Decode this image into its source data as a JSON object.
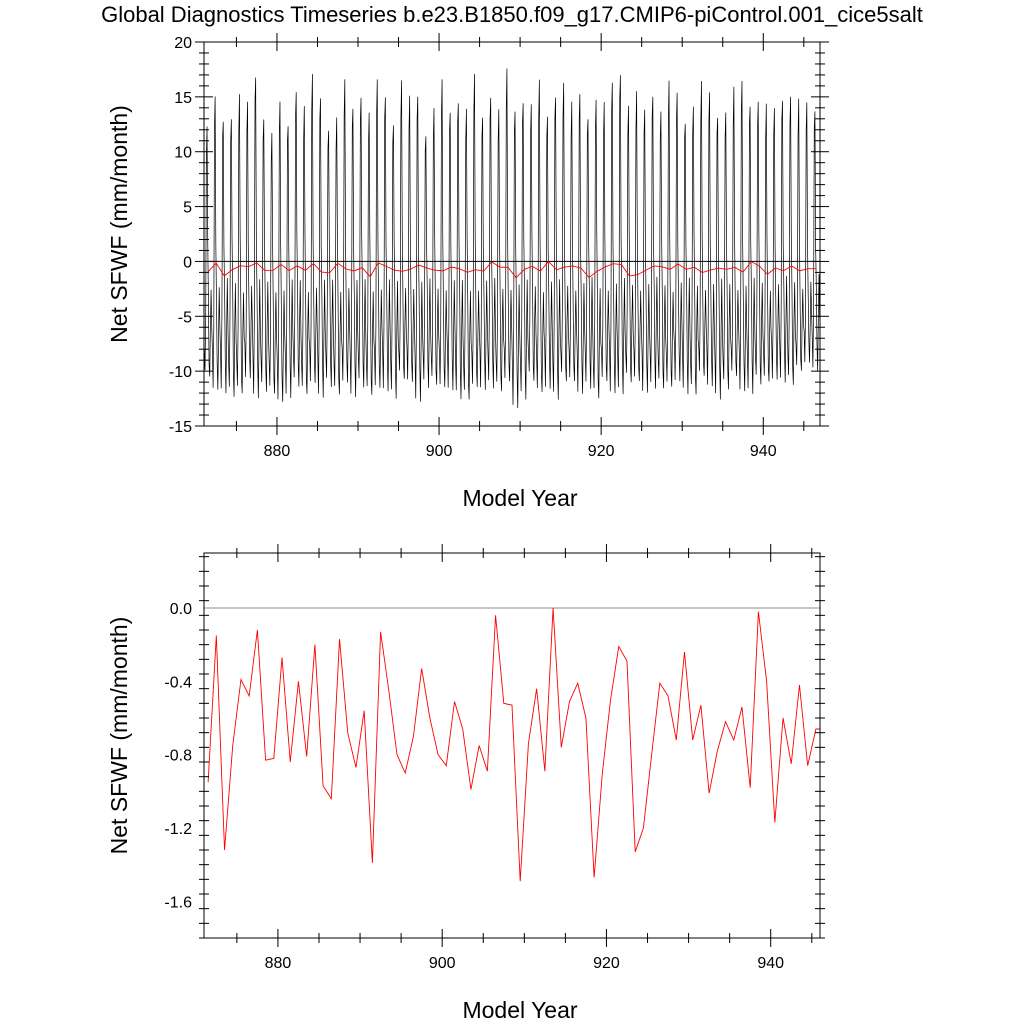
{
  "title": "Global Diagnostics Timeseries b.e23.B1850.f09_g17.CMIP6-piControl.001_cice5salt",
  "colors": {
    "monthly_line": "#000000",
    "annual_line": "#ff0000",
    "zero_line": "#000000",
    "background": "#ffffff"
  },
  "chart_data": [
    {
      "type": "line",
      "panel": "top",
      "xlabel": "Model Year",
      "ylabel": "Net SFWF (mm/month)",
      "xlim": [
        871,
        947
      ],
      "ylim": [
        -15,
        20
      ],
      "x_ticks": [
        880,
        900,
        920,
        940
      ],
      "y_ticks": [
        -15,
        -10,
        -5,
        0,
        5,
        10,
        15,
        20
      ],
      "y_tick_labels": [
        "-15",
        "-10",
        "-5",
        "0",
        "5",
        "10",
        "15",
        "20"
      ],
      "reference_line": 0,
      "grid": false,
      "series": [
        {
          "color": "#000000",
          "resolution": "monthly",
          "start_year": 871,
          "monthly_template": [
            -8,
            -10.5,
            -5,
            12,
            14.5,
            2,
            -3,
            -9,
            -11,
            -6,
            -2,
            -6
          ],
          "annual_peaks": [
            12.0,
            14.5,
            13.0,
            13.5,
            15.0,
            14.0,
            17.0,
            13.5,
            11.5,
            14.0,
            12.5,
            16.0,
            14.0,
            16.5,
            15.0,
            12.5,
            13.0,
            16.0,
            14.0,
            15.5,
            13.5,
            16.0,
            15.0,
            13.0,
            16.5,
            14.5,
            15.0,
            12.0,
            14.0,
            16.0,
            13.5,
            15.0,
            14.0,
            16.5,
            13.0,
            15.5,
            14.0,
            17.0,
            13.5,
            15.0,
            14.5,
            16.0,
            13.0,
            15.5,
            16.5,
            14.0,
            15.0,
            13.5,
            15.0,
            14.0,
            16.0,
            17.5,
            14.5,
            15.0,
            13.5,
            15.5,
            14.0,
            16.0,
            15.0,
            13.0,
            14.5,
            16.0,
            15.0,
            13.5,
            14.0,
            15.5,
            16.0,
            14.5,
            15.0,
            14.0,
            13.5,
            15.0,
            15.5,
            14.5,
            14.0,
            14.0
          ],
          "annual_troughs": [
            -11.0,
            -12.0,
            -11.5,
            -12.0,
            -12.5,
            -11.0,
            -12.0,
            -11.5,
            -12.5,
            -13.2,
            -12.0,
            -11.0,
            -12.5,
            -11.5,
            -12.0,
            -11.0,
            -12.5,
            -11.5,
            -12.0,
            -11.0,
            -12.5,
            -12.0,
            -11.5,
            -12.0,
            -11.0,
            -11.5,
            -12.5,
            -11.0,
            -11.5,
            -12.0,
            -11.5,
            -12.0,
            -12.8,
            -12.0,
            -11.5,
            -11.0,
            -12.0,
            -11.5,
            -13.2,
            -12.0,
            -11.0,
            -12.5,
            -11.5,
            -12.0,
            -11.0,
            -11.5,
            -12.0,
            -11.0,
            -12.5,
            -11.5,
            -12.0,
            -11.5,
            -11.0,
            -11.5,
            -12.0,
            -11.0,
            -11.5,
            -12.0,
            -11.0,
            -11.5,
            -12.0,
            -11.0,
            -11.5,
            -12.0,
            -11.5,
            -11.0,
            -12.0,
            -11.5,
            -11.0,
            -11.5,
            -11.0,
            -10.5,
            -11.0,
            -10.5,
            -9.5,
            -9.5
          ]
        },
        {
          "color": "#ff0000",
          "resolution": "annual",
          "x": [
            871,
            872,
            873,
            874,
            875,
            876,
            877,
            878,
            879,
            880,
            881,
            882,
            883,
            884,
            885,
            886,
            887,
            888,
            889,
            890,
            891,
            892,
            893,
            894,
            895,
            896,
            897,
            898,
            899,
            900,
            901,
            902,
            903,
            904,
            905,
            906,
            907,
            908,
            909,
            910,
            911,
            912,
            913,
            914,
            915,
            916,
            917,
            918,
            919,
            920,
            921,
            922,
            923,
            924,
            925,
            926,
            927,
            928,
            929,
            930,
            931,
            932,
            933,
            934,
            935,
            936,
            937,
            938,
            939,
            940,
            941,
            942,
            943,
            944,
            945,
            946
          ],
          "values": [
            -0.95,
            -0.15,
            -1.32,
            -0.75,
            -0.39,
            -0.48,
            -0.12,
            -0.83,
            -0.82,
            -0.27,
            -0.84,
            -0.4,
            -0.81,
            -0.2,
            -0.97,
            -1.04,
            -0.17,
            -0.68,
            -0.87,
            -0.56,
            -1.39,
            -0.13,
            -0.45,
            -0.8,
            -0.9,
            -0.7,
            -0.33,
            -0.6,
            -0.8,
            -0.86,
            -0.51,
            -0.66,
            -0.99,
            -0.75,
            -0.89,
            -0.04,
            -0.52,
            -0.53,
            -1.49,
            -0.74,
            -0.44,
            -0.89,
            0.0,
            -0.76,
            -0.51,
            -0.41,
            -0.6,
            -1.47,
            -0.9,
            -0.5,
            -0.21,
            -0.29,
            -1.33,
            -1.2,
            -0.8,
            -0.41,
            -0.48,
            -0.72,
            -0.24,
            -0.72,
            -0.53,
            -1.01,
            -0.78,
            -0.62,
            -0.72,
            -0.54,
            -0.98,
            -0.02,
            -0.4,
            -1.17,
            -0.6,
            -0.85,
            -0.42,
            -0.86,
            -0.66,
            -0.66
          ]
        }
      ]
    },
    {
      "type": "line",
      "panel": "bottom",
      "xlabel": "Model Year",
      "ylabel": "Net SFWF (mm/month)",
      "xlim": [
        871,
        946
      ],
      "ylim": [
        -1.8,
        0.3
      ],
      "x_ticks": [
        880,
        900,
        920,
        940
      ],
      "y_ticks": [
        -1.6,
        -1.2,
        -0.8,
        -0.4,
        0.0
      ],
      "y_tick_labels": [
        "-1.6",
        "-1.2",
        "-0.8",
        "-0.4",
        "0.0"
      ],
      "reference_line": 0,
      "grid": false,
      "series": [
        {
          "color": "#ff0000",
          "resolution": "annual",
          "x": [
            871,
            872,
            873,
            874,
            875,
            876,
            877,
            878,
            879,
            880,
            881,
            882,
            883,
            884,
            885,
            886,
            887,
            888,
            889,
            890,
            891,
            892,
            893,
            894,
            895,
            896,
            897,
            898,
            899,
            900,
            901,
            902,
            903,
            904,
            905,
            906,
            907,
            908,
            909,
            910,
            911,
            912,
            913,
            914,
            915,
            916,
            917,
            918,
            919,
            920,
            921,
            922,
            923,
            924,
            925,
            926,
            927,
            928,
            929,
            930,
            931,
            932,
            933,
            934,
            935,
            936,
            937,
            938,
            939,
            940,
            941,
            942,
            943,
            944,
            945,
            946
          ],
          "values": [
            -0.95,
            -0.15,
            -1.32,
            -0.75,
            -0.39,
            -0.48,
            -0.12,
            -0.83,
            -0.82,
            -0.27,
            -0.84,
            -0.4,
            -0.81,
            -0.2,
            -0.97,
            -1.04,
            -0.17,
            -0.68,
            -0.87,
            -0.56,
            -1.39,
            -0.13,
            -0.45,
            -0.8,
            -0.9,
            -0.7,
            -0.33,
            -0.6,
            -0.8,
            -0.86,
            -0.51,
            -0.66,
            -0.99,
            -0.75,
            -0.89,
            -0.04,
            -0.52,
            -0.53,
            -1.49,
            -0.74,
            -0.44,
            -0.89,
            0.0,
            -0.76,
            -0.51,
            -0.41,
            -0.6,
            -1.47,
            -0.9,
            -0.5,
            -0.21,
            -0.29,
            -1.33,
            -1.2,
            -0.8,
            -0.41,
            -0.48,
            -0.72,
            -0.24,
            -0.72,
            -0.53,
            -1.01,
            -0.78,
            -0.62,
            -0.72,
            -0.54,
            -0.98,
            -0.02,
            -0.4,
            -1.17,
            -0.6,
            -0.85,
            -0.42,
            -0.86,
            -0.66,
            -0.66
          ]
        }
      ]
    }
  ]
}
